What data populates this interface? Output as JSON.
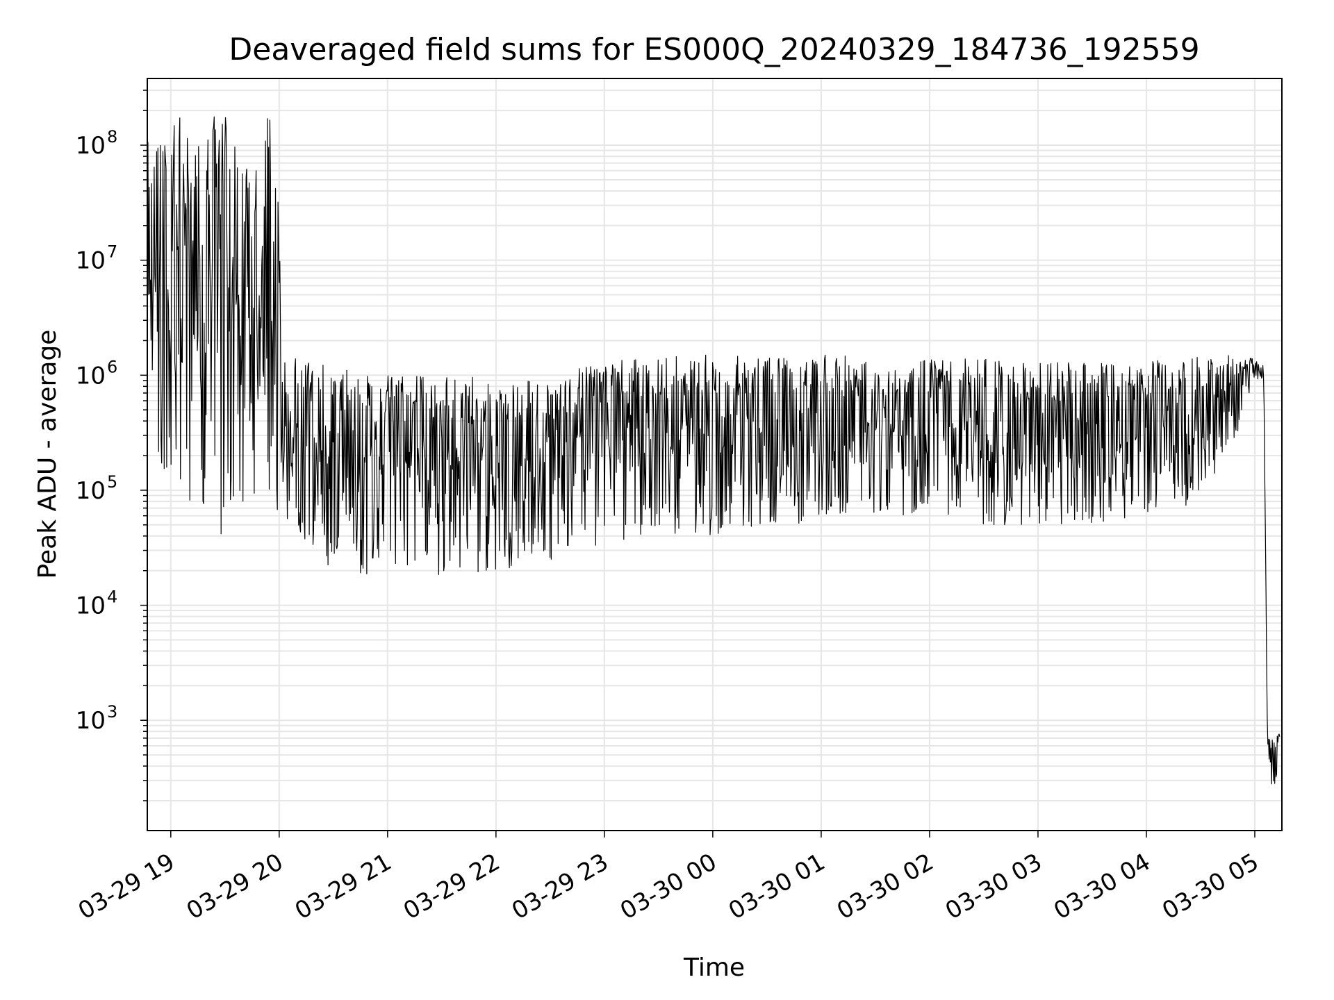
{
  "chart_data": {
    "type": "line",
    "title": "Deaveraged field sums for ES000Q_20240329_184736_192559",
    "xlabel": "Time",
    "ylabel": "Peak ADU - average",
    "yscale": "log",
    "ylim": [
      110,
      380000000
    ],
    "xlim": [
      "2024-03-29 18:47",
      "2024-03-30 05:15"
    ],
    "grid": true,
    "line_color": "#000000",
    "grid_color": "#e6e6e6",
    "x_ticks": [
      {
        "label": "03-29 19",
        "t": "2024-03-29 19:00"
      },
      {
        "label": "03-29 20",
        "t": "2024-03-29 20:00"
      },
      {
        "label": "03-29 21",
        "t": "2024-03-29 21:00"
      },
      {
        "label": "03-29 22",
        "t": "2024-03-29 22:00"
      },
      {
        "label": "03-29 23",
        "t": "2024-03-29 23:00"
      },
      {
        "label": "03-30 00",
        "t": "2024-03-30 00:00"
      },
      {
        "label": "03-30 01",
        "t": "2024-03-30 01:00"
      },
      {
        "label": "03-30 02",
        "t": "2024-03-30 02:00"
      },
      {
        "label": "03-30 03",
        "t": "2024-03-30 03:00"
      },
      {
        "label": "03-30 04",
        "t": "2024-03-30 04:00"
      },
      {
        "label": "03-30 05",
        "t": "2024-03-30 05:00"
      }
    ],
    "y_ticks": [
      {
        "value": 1000,
        "base": "10",
        "exp": "3"
      },
      {
        "value": 10000,
        "base": "10",
        "exp": "4"
      },
      {
        "value": 100000,
        "base": "10",
        "exp": "5"
      },
      {
        "value": 1000000,
        "base": "10",
        "exp": "6"
      },
      {
        "value": 10000000,
        "base": "10",
        "exp": "7"
      },
      {
        "value": 100000000,
        "base": "10",
        "exp": "8"
      }
    ],
    "series": [
      {
        "envelope": [
          {
            "t": "2024-03-29 18:47",
            "low": 200000,
            "high": 150000000
          },
          {
            "t": "2024-03-29 19:00",
            "low": 100000,
            "high": 170000000
          },
          {
            "t": "2024-03-29 19:15",
            "low": 70000,
            "high": 180000000
          },
          {
            "t": "2024-03-29 19:30",
            "low": 30000,
            "high": 180000000
          },
          {
            "t": "2024-03-29 19:45",
            "low": 80000,
            "high": 50000000
          },
          {
            "t": "2024-03-29 19:50",
            "low": 90000,
            "high": 180000000
          },
          {
            "t": "2024-03-29 19:58",
            "low": 60000,
            "high": 180000000
          },
          {
            "t": "2024-03-29 20:02",
            "low": 50000,
            "high": 1500000
          },
          {
            "t": "2024-03-29 20:30",
            "low": 20000,
            "high": 1200000
          },
          {
            "t": "2024-03-29 21:00",
            "low": 18000,
            "high": 1000000
          },
          {
            "t": "2024-03-29 21:30",
            "low": 18000,
            "high": 1000000
          },
          {
            "t": "2024-03-29 22:00",
            "low": 20000,
            "high": 1000000
          },
          {
            "t": "2024-03-29 22:30",
            "low": 25000,
            "high": 1000000
          },
          {
            "t": "2024-03-29 23:00",
            "low": 30000,
            "high": 1300000
          },
          {
            "t": "2024-03-29 23:30",
            "low": 40000,
            "high": 1500000
          },
          {
            "t": "2024-03-30 00:00",
            "low": 40000,
            "high": 1500000
          },
          {
            "t": "2024-03-30 00:30",
            "low": 50000,
            "high": 1500000
          },
          {
            "t": "2024-03-30 01:00",
            "low": 50000,
            "high": 1500000
          },
          {
            "t": "2024-03-30 01:30",
            "low": 60000,
            "high": 1500000
          },
          {
            "t": "2024-03-30 02:00",
            "low": 60000,
            "high": 1400000
          },
          {
            "t": "2024-03-30 02:30",
            "low": 50000,
            "high": 1400000
          },
          {
            "t": "2024-03-30 03:00",
            "low": 50000,
            "high": 1300000
          },
          {
            "t": "2024-03-30 03:30",
            "low": 50000,
            "high": 1300000
          },
          {
            "t": "2024-03-30 04:00",
            "low": 60000,
            "high": 1300000
          },
          {
            "t": "2024-03-30 04:30",
            "low": 80000,
            "high": 1500000
          },
          {
            "t": "2024-03-30 04:50",
            "low": 300000,
            "high": 1500000
          },
          {
            "t": "2024-03-30 05:00",
            "low": 1000000,
            "high": 1400000
          },
          {
            "t": "2024-03-30 05:05",
            "low": 800000,
            "high": 1200000
          },
          {
            "t": "2024-03-30 05:07",
            "low": 600,
            "high": 700
          },
          {
            "t": "2024-03-30 05:10",
            "low": 200,
            "high": 700
          },
          {
            "t": "2024-03-30 05:14",
            "low": 400,
            "high": 800
          }
        ]
      }
    ]
  }
}
